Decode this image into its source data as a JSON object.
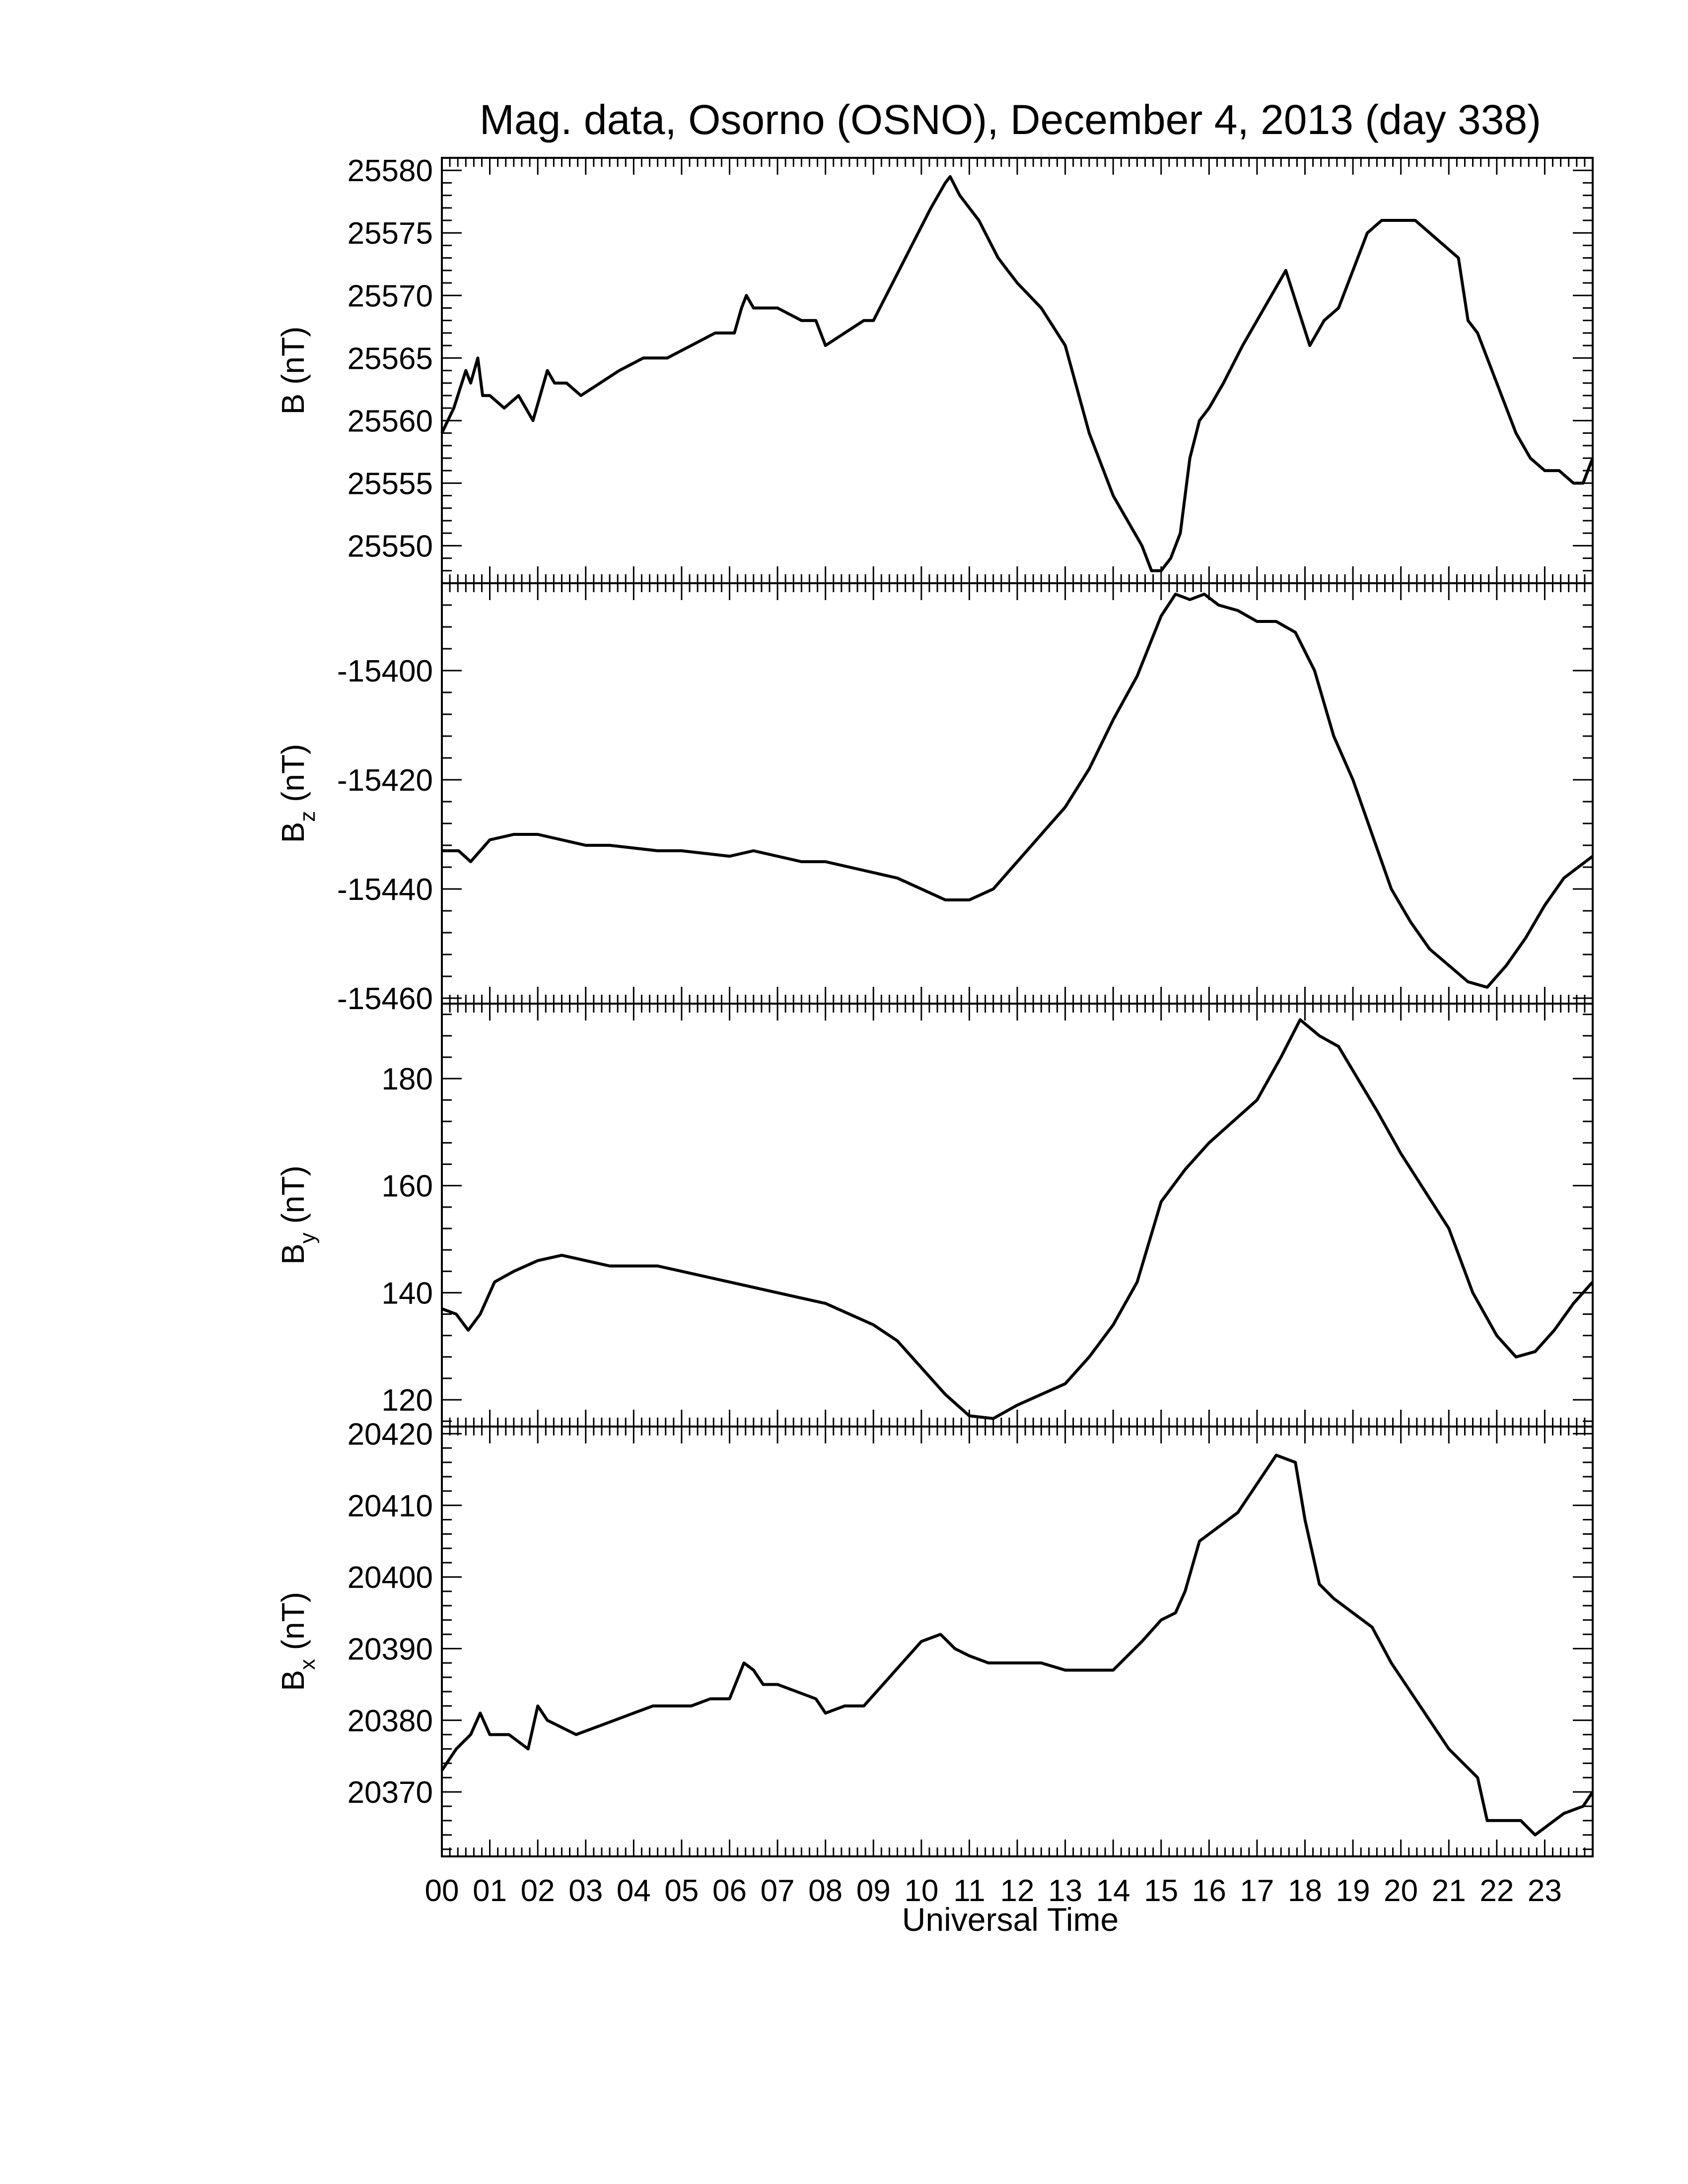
{
  "figure": {
    "title": "Mag. data, Osorno (OSNO), December 4, 2013 (day 338)",
    "xlabel": "Universal Time",
    "line_color": "#000000",
    "background_color": "#ffffff"
  },
  "chart_data": [
    {
      "type": "line",
      "panel": "B",
      "ylabel_main": "B",
      "ylabel_sub": "",
      "ylabel_unit": "(nT)",
      "xlim": [
        0,
        24
      ],
      "ylim": [
        25547,
        25581
      ],
      "yticks": [
        25550,
        25555,
        25560,
        25565,
        25570,
        25575,
        25580
      ],
      "series": [
        {
          "x": [
            0,
            0.25,
            0.5,
            0.6,
            0.75,
            0.85,
            1.0,
            1.3,
            1.6,
            1.9,
            2.05,
            2.2,
            2.35,
            2.6,
            2.9,
            3.3,
            3.7,
            4.2,
            4.7,
            5.2,
            5.7,
            6.1,
            6.25,
            6.35,
            6.5,
            7.0,
            7.5,
            7.8,
            8.0,
            8.4,
            8.8,
            9.0,
            9.4,
            9.8,
            10.2,
            10.5,
            10.6,
            10.8,
            11.2,
            11.6,
            12.0,
            12.5,
            13.0,
            13.5,
            14.0,
            14.3,
            14.6,
            14.8,
            15.0,
            15.2,
            15.4,
            15.6,
            15.8,
            16.0,
            16.3,
            16.7,
            17.0,
            17.3,
            17.6,
            17.85,
            18.1,
            18.4,
            18.7,
            19.0,
            19.3,
            19.6,
            20.0,
            20.3,
            20.6,
            20.9,
            21.2,
            21.4,
            21.6,
            21.8,
            22.1,
            22.4,
            22.7,
            23.0,
            23.3,
            23.6,
            23.8,
            24.0
          ],
          "y": [
            25559,
            25561,
            25564,
            25563,
            25565,
            25562,
            25562,
            25561,
            25562,
            25560,
            25562,
            25564,
            25563,
            25563,
            25562,
            25563,
            25564,
            25565,
            25565,
            25566,
            25567,
            25567,
            25569,
            25570,
            25569,
            25569,
            25568,
            25568,
            25566,
            25567,
            25568,
            25568,
            25571,
            25574,
            25577,
            25579,
            25579.5,
            25578,
            25576,
            25573,
            25571,
            25569,
            25566,
            25559,
            25554,
            25552,
            25550,
            25548,
            25548,
            25549,
            25551,
            25557,
            25560,
            25561,
            25563,
            25566,
            25568,
            25570,
            25572,
            25569,
            25566,
            25568,
            25569,
            25572,
            25575,
            25576,
            25576,
            25576,
            25575,
            25574,
            25573,
            25568,
            25567,
            25565,
            25562,
            25559,
            25557,
            25556,
            25556,
            25555,
            25555,
            25557
          ]
        }
      ]
    },
    {
      "type": "line",
      "panel": "Bz",
      "ylabel_main": "B",
      "ylabel_sub": "z",
      "ylabel_unit": "(nT)",
      "xlim": [
        0,
        24
      ],
      "ylim": [
        -15461,
        -15384
      ],
      "yticks": [
        -15460,
        -15440,
        -15420,
        -15400
      ],
      "series": [
        {
          "x": [
            0,
            0.35,
            0.6,
            1.0,
            1.5,
            2.0,
            2.5,
            3.0,
            3.5,
            4.0,
            4.5,
            5.0,
            5.5,
            6.0,
            6.5,
            7.0,
            7.5,
            8.0,
            8.5,
            9.0,
            9.5,
            10.0,
            10.5,
            11.0,
            11.5,
            12.0,
            12.5,
            13.0,
            13.5,
            14.0,
            14.5,
            15.0,
            15.3,
            15.6,
            15.9,
            16.2,
            16.6,
            17.0,
            17.4,
            17.8,
            18.2,
            18.6,
            19.0,
            19.4,
            19.8,
            20.2,
            20.6,
            21.0,
            21.4,
            21.8,
            22.2,
            22.6,
            23.0,
            23.4,
            24.0
          ],
          "y": [
            -15433,
            -15433,
            -15435,
            -15431,
            -15430,
            -15430,
            -15431,
            -15432,
            -15432,
            -15432.5,
            -15433,
            -15433,
            -15433.5,
            -15434,
            -15433,
            -15434,
            -15435,
            -15435,
            -15436,
            -15437,
            -15438,
            -15440,
            -15442,
            -15442,
            -15440,
            -15435,
            -15430,
            -15425,
            -15418,
            -15409,
            -15401,
            -15390,
            -15386,
            -15387,
            -15386,
            -15388,
            -15389,
            -15391,
            -15391,
            -15393,
            -15400,
            -15412,
            -15420,
            -15430,
            -15440,
            -15446,
            -15451,
            -15454,
            -15457,
            -15458,
            -15454,
            -15449,
            -15443,
            -15438,
            -15434
          ]
        }
      ]
    },
    {
      "type": "line",
      "panel": "By",
      "ylabel_main": "B",
      "ylabel_sub": "y",
      "ylabel_unit": "(nT)",
      "xlim": [
        0,
        24
      ],
      "ylim": [
        115,
        194
      ],
      "yticks": [
        120,
        140,
        160,
        180
      ],
      "series": [
        {
          "x": [
            0,
            0.3,
            0.55,
            0.8,
            1.1,
            1.5,
            2.0,
            2.5,
            3.0,
            3.5,
            4.0,
            4.5,
            5.0,
            5.5,
            6.0,
            6.5,
            7.0,
            7.5,
            8.0,
            8.5,
            9.0,
            9.5,
            10.0,
            10.5,
            11.0,
            11.5,
            12.0,
            12.5,
            13.0,
            13.5,
            14.0,
            14.5,
            15.0,
            15.5,
            16.0,
            16.5,
            17.0,
            17.5,
            17.9,
            18.3,
            18.7,
            19.1,
            19.5,
            20.0,
            20.5,
            21.0,
            21.5,
            22.0,
            22.4,
            22.8,
            23.2,
            23.6,
            24.0
          ],
          "y": [
            137,
            136,
            133,
            136,
            142,
            144,
            146,
            147,
            146,
            145,
            145,
            145,
            144,
            143,
            142,
            141,
            140,
            139,
            138,
            136,
            134,
            131,
            126,
            121,
            117,
            116.5,
            119,
            121,
            123,
            128,
            134,
            142,
            157,
            163,
            168,
            172,
            176,
            184,
            191,
            188,
            186,
            180,
            174,
            166,
            159,
            152,
            140,
            132,
            128,
            129,
            133,
            138,
            142
          ]
        }
      ]
    },
    {
      "type": "line",
      "panel": "Bx",
      "ylabel_main": "B",
      "ylabel_sub": "x",
      "ylabel_unit": "(nT)",
      "xlim": [
        0,
        24
      ],
      "ylim": [
        20361,
        20421
      ],
      "yticks": [
        20370,
        20380,
        20390,
        20400,
        20410,
        20420
      ],
      "series": [
        {
          "x": [
            0,
            0.3,
            0.6,
            0.8,
            1.0,
            1.4,
            1.8,
            2.0,
            2.2,
            2.5,
            2.8,
            3.2,
            3.6,
            4.0,
            4.4,
            4.8,
            5.2,
            5.6,
            6.0,
            6.3,
            6.5,
            6.7,
            7.0,
            7.4,
            7.8,
            8.0,
            8.4,
            8.8,
            9.2,
            9.6,
            10.0,
            10.4,
            10.7,
            11.0,
            11.4,
            11.7,
            12.0,
            12.5,
            13.0,
            13.5,
            14.0,
            14.3,
            14.6,
            15.0,
            15.3,
            15.5,
            15.8,
            16.2,
            16.6,
            17.0,
            17.4,
            17.8,
            18.0,
            18.3,
            18.6,
            19.0,
            19.4,
            19.8,
            20.2,
            20.6,
            21.0,
            21.3,
            21.6,
            21.8,
            22.1,
            22.5,
            22.8,
            23.0,
            23.4,
            23.8,
            24.0
          ],
          "y": [
            20373,
            20376,
            20378,
            20381,
            20378,
            20378,
            20376,
            20382,
            20380,
            20379,
            20378,
            20379,
            20380,
            20381,
            20382,
            20382,
            20382,
            20383,
            20383,
            20388,
            20387,
            20385,
            20385,
            20384,
            20383,
            20381,
            20382,
            20382,
            20385,
            20388,
            20391,
            20392,
            20390,
            20389,
            20388,
            20388,
            20388,
            20388,
            20387,
            20387,
            20387,
            20389,
            20391,
            20394,
            20395,
            20398,
            20405,
            20407,
            20409,
            20413,
            20417,
            20416,
            20408,
            20399,
            20397,
            20395,
            20393,
            20388,
            20384,
            20380,
            20376,
            20374,
            20372,
            20366,
            20366,
            20366,
            20364,
            20365,
            20367,
            20368,
            20370
          ]
        }
      ]
    }
  ],
  "x_tick_labels": [
    "00",
    "01",
    "02",
    "03",
    "04",
    "05",
    "06",
    "07",
    "08",
    "09",
    "10",
    "11",
    "12",
    "13",
    "14",
    "15",
    "16",
    "17",
    "18",
    "19",
    "20",
    "21",
    "22",
    "23"
  ]
}
